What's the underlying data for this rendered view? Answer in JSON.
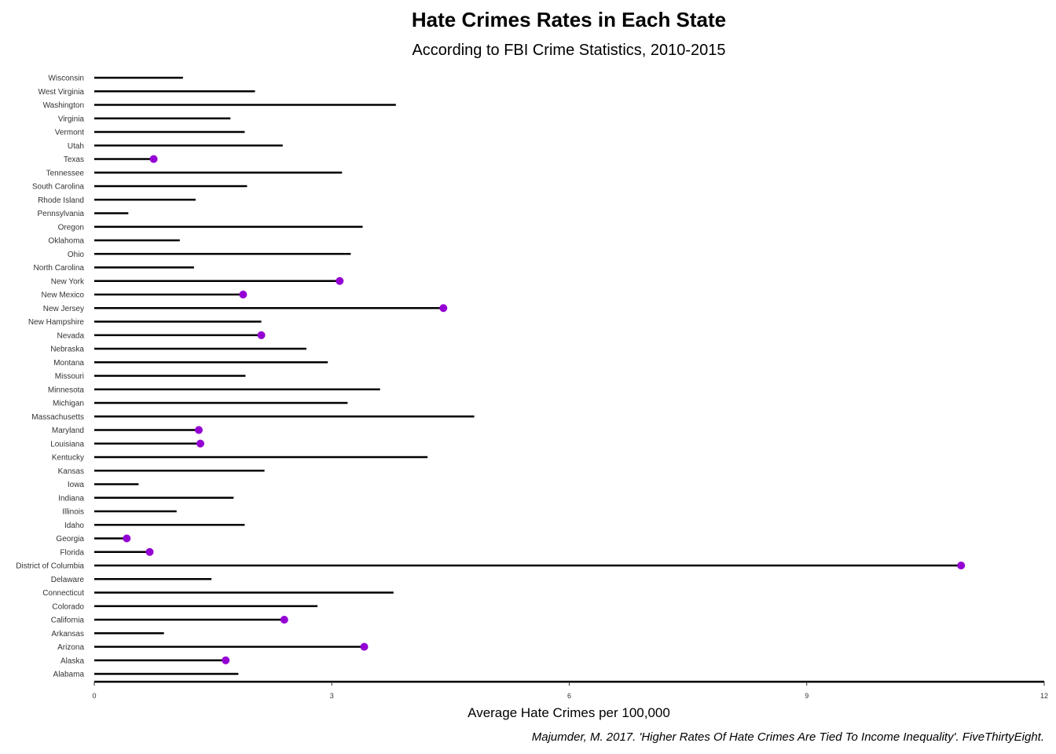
{
  "chart_data": {
    "type": "lollipop",
    "title": "Hate Crimes Rates in Each State",
    "subtitle": "According to FBI Crime Statistics, 2010-2015",
    "xlabel": "Average Hate Crimes per 100,000",
    "caption": "Majumder, M. 2017. 'Higher Rates Of Hate Crimes Are Tied To Income Inequality'. FiveThirtyEight.",
    "xlim": [
      0,
      12
    ],
    "xticks": [
      0,
      3,
      6,
      9,
      12
    ],
    "grid": false,
    "highlight_color": "#9400D3",
    "line_color": "#000000",
    "states": [
      {
        "name": "Alabama",
        "value": 1.82,
        "highlight": false
      },
      {
        "name": "Alaska",
        "value": 1.66,
        "highlight": true
      },
      {
        "name": "Arizona",
        "value": 3.41,
        "highlight": true
      },
      {
        "name": "Arkansas",
        "value": 0.88,
        "highlight": false
      },
      {
        "name": "California",
        "value": 2.4,
        "highlight": true
      },
      {
        "name": "Colorado",
        "value": 2.82,
        "highlight": false
      },
      {
        "name": "Connecticut",
        "value": 3.78,
        "highlight": false
      },
      {
        "name": "Delaware",
        "value": 1.48,
        "highlight": false
      },
      {
        "name": "District of Columbia",
        "value": 10.95,
        "highlight": true
      },
      {
        "name": "Florida",
        "value": 0.7,
        "highlight": true
      },
      {
        "name": "Georgia",
        "value": 0.41,
        "highlight": true
      },
      {
        "name": "Idaho",
        "value": 1.9,
        "highlight": false
      },
      {
        "name": "Illinois",
        "value": 1.04,
        "highlight": false
      },
      {
        "name": "Indiana",
        "value": 1.76,
        "highlight": false
      },
      {
        "name": "Iowa",
        "value": 0.56,
        "highlight": false
      },
      {
        "name": "Kansas",
        "value": 2.15,
        "highlight": false
      },
      {
        "name": "Kentucky",
        "value": 4.21,
        "highlight": false
      },
      {
        "name": "Louisiana",
        "value": 1.34,
        "highlight": true
      },
      {
        "name": "Maryland",
        "value": 1.32,
        "highlight": true
      },
      {
        "name": "Massachusetts",
        "value": 4.8,
        "highlight": false
      },
      {
        "name": "Michigan",
        "value": 3.2,
        "highlight": false
      },
      {
        "name": "Minnesota",
        "value": 3.61,
        "highlight": false
      },
      {
        "name": "Missouri",
        "value": 1.91,
        "highlight": false
      },
      {
        "name": "Montana",
        "value": 2.95,
        "highlight": false
      },
      {
        "name": "Nebraska",
        "value": 2.68,
        "highlight": false
      },
      {
        "name": "Nevada",
        "value": 2.11,
        "highlight": true
      },
      {
        "name": "New Hampshire",
        "value": 2.11,
        "highlight": false
      },
      {
        "name": "New Jersey",
        "value": 4.41,
        "highlight": true
      },
      {
        "name": "New Mexico",
        "value": 1.88,
        "highlight": true
      },
      {
        "name": "New York",
        "value": 3.1,
        "highlight": true
      },
      {
        "name": "North Carolina",
        "value": 1.26,
        "highlight": false
      },
      {
        "name": "Ohio",
        "value": 3.24,
        "highlight": false
      },
      {
        "name": "Oklahoma",
        "value": 1.08,
        "highlight": false
      },
      {
        "name": "Oregon",
        "value": 3.39,
        "highlight": false
      },
      {
        "name": "Pennsylvania",
        "value": 0.43,
        "highlight": false
      },
      {
        "name": "Rhode Island",
        "value": 1.28,
        "highlight": false
      },
      {
        "name": "South Carolina",
        "value": 1.93,
        "highlight": false
      },
      {
        "name": "Tennessee",
        "value": 3.13,
        "highlight": false
      },
      {
        "name": "Texas",
        "value": 0.75,
        "highlight": true
      },
      {
        "name": "Utah",
        "value": 2.38,
        "highlight": false
      },
      {
        "name": "Vermont",
        "value": 1.9,
        "highlight": false
      },
      {
        "name": "Virginia",
        "value": 1.72,
        "highlight": false
      },
      {
        "name": "Washington",
        "value": 3.81,
        "highlight": false
      },
      {
        "name": "West Virginia",
        "value": 2.03,
        "highlight": false
      },
      {
        "name": "Wisconsin",
        "value": 1.12,
        "highlight": false
      }
    ]
  }
}
